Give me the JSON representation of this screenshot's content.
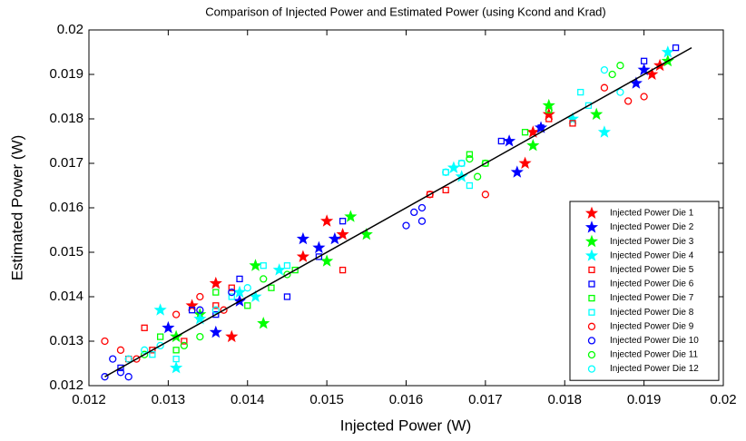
{
  "chart_data": {
    "type": "scatter",
    "title": "Comparison of Injected Power and Estimated Power (using Kcond and Krad)",
    "xlabel": "Injected Power (W)",
    "ylabel": "Estimated Power (W)",
    "xlim": [
      0.012,
      0.02
    ],
    "ylim": [
      0.012,
      0.02
    ],
    "xticks": [
      0.012,
      0.013,
      0.014,
      0.015,
      0.016,
      0.017,
      0.018,
      0.019,
      0.02
    ],
    "yticks": [
      0.012,
      0.013,
      0.014,
      0.015,
      0.016,
      0.017,
      0.018,
      0.019,
      0.02
    ],
    "grid": false,
    "legend": "lower right",
    "fit_line": {
      "x": [
        0.0122,
        0.0196
      ],
      "y": [
        0.0122,
        0.0196
      ],
      "color": "#000000"
    },
    "series": [
      {
        "name": "Injected Power Die 1",
        "color": "#ff0000",
        "marker": "star",
        "x": [
          0.0133,
          0.0136,
          0.0138,
          0.0147,
          0.015,
          0.0152,
          0.0175,
          0.0176,
          0.0178,
          0.0191,
          0.0192
        ],
        "values": [
          0.0138,
          0.0143,
          0.0131,
          0.0149,
          0.0157,
          0.0154,
          0.017,
          0.0177,
          0.0181,
          0.019,
          0.0192
        ]
      },
      {
        "name": "Injected Power Die 2",
        "color": "#0000ff",
        "marker": "star",
        "x": [
          0.013,
          0.0136,
          0.0139,
          0.0147,
          0.0149,
          0.0151,
          0.0173,
          0.0174,
          0.0177,
          0.0189,
          0.019
        ],
        "values": [
          0.0133,
          0.0132,
          0.0139,
          0.0153,
          0.0151,
          0.0153,
          0.0175,
          0.0168,
          0.0178,
          0.0188,
          0.0191
        ]
      },
      {
        "name": "Injected Power Die 3",
        "color": "#00ff00",
        "marker": "star",
        "x": [
          0.0131,
          0.0134,
          0.0141,
          0.0142,
          0.015,
          0.0153,
          0.0155,
          0.0176,
          0.0178,
          0.0184,
          0.0193
        ],
        "values": [
          0.0131,
          0.0136,
          0.0147,
          0.0134,
          0.0148,
          0.0158,
          0.0154,
          0.0174,
          0.0183,
          0.0181,
          0.0193
        ]
      },
      {
        "name": "Injected Power Die 4",
        "color": "#00ffff",
        "marker": "star",
        "x": [
          0.0129,
          0.0131,
          0.0134,
          0.0139,
          0.0141,
          0.0144,
          0.0166,
          0.0167,
          0.0181,
          0.0185,
          0.0193
        ],
        "values": [
          0.0137,
          0.0124,
          0.0135,
          0.0141,
          0.014,
          0.0146,
          0.0169,
          0.0167,
          0.018,
          0.0177,
          0.0195
        ]
      },
      {
        "name": "Injected Power Die 5",
        "color": "#ff0000",
        "marker": "square",
        "x": [
          0.0125,
          0.0127,
          0.0128,
          0.0132,
          0.0136,
          0.0138,
          0.0152,
          0.0163,
          0.0165,
          0.0178,
          0.0181
        ],
        "values": [
          0.0126,
          0.0133,
          0.0128,
          0.013,
          0.0138,
          0.0142,
          0.0146,
          0.0163,
          0.0164,
          0.018,
          0.0179
        ]
      },
      {
        "name": "Injected Power Die 6",
        "color": "#0000ff",
        "marker": "square",
        "x": [
          0.0124,
          0.0133,
          0.0136,
          0.0139,
          0.0145,
          0.0149,
          0.0152,
          0.0172,
          0.0177,
          0.019,
          0.0194
        ],
        "values": [
          0.0124,
          0.0137,
          0.0136,
          0.0144,
          0.014,
          0.0149,
          0.0157,
          0.0175,
          0.0178,
          0.0193,
          0.0196
        ]
      },
      {
        "name": "Injected Power Die 7",
        "color": "#00ff00",
        "marker": "square",
        "x": [
          0.0129,
          0.0131,
          0.0136,
          0.014,
          0.0143,
          0.0146,
          0.0168,
          0.017,
          0.0175,
          0.0178
        ],
        "values": [
          0.0131,
          0.0128,
          0.0141,
          0.0138,
          0.0142,
          0.0146,
          0.0172,
          0.017,
          0.0177,
          0.0182
        ]
      },
      {
        "name": "Injected Power Die 8",
        "color": "#00ffff",
        "marker": "square",
        "x": [
          0.0128,
          0.0131,
          0.0138,
          0.0142,
          0.0145,
          0.0165,
          0.0167,
          0.0168,
          0.0182,
          0.0183
        ],
        "values": [
          0.0127,
          0.0126,
          0.014,
          0.0147,
          0.0147,
          0.0168,
          0.017,
          0.0165,
          0.0186,
          0.0183
        ]
      },
      {
        "name": "Injected Power Die 9",
        "color": "#ff0000",
        "marker": "circle",
        "x": [
          0.0122,
          0.0124,
          0.0126,
          0.0131,
          0.0134,
          0.0137,
          0.0163,
          0.017,
          0.0185,
          0.0188,
          0.019
        ],
        "values": [
          0.013,
          0.0128,
          0.0126,
          0.0136,
          0.014,
          0.0137,
          0.0163,
          0.0163,
          0.0187,
          0.0184,
          0.0185
        ]
      },
      {
        "name": "Injected Power Die 10",
        "color": "#0000ff",
        "marker": "circle",
        "x": [
          0.0122,
          0.0123,
          0.0124,
          0.0125,
          0.0134,
          0.0138,
          0.0161,
          0.0162,
          0.0162,
          0.016
        ],
        "values": [
          0.0122,
          0.0126,
          0.0123,
          0.0122,
          0.0137,
          0.0141,
          0.0159,
          0.0157,
          0.016,
          0.0156
        ]
      },
      {
        "name": "Injected Power Die 11",
        "color": "#00ff00",
        "marker": "circle",
        "x": [
          0.0127,
          0.0132,
          0.0134,
          0.0142,
          0.0145,
          0.0168,
          0.0169,
          0.017,
          0.0186,
          0.0187
        ],
        "values": [
          0.0127,
          0.0129,
          0.0131,
          0.0144,
          0.0145,
          0.0171,
          0.0167,
          0.017,
          0.019,
          0.0192
        ]
      },
      {
        "name": "Injected Power Die 12",
        "color": "#00ffff",
        "marker": "circle",
        "x": [
          0.0125,
          0.0127,
          0.0129,
          0.0136,
          0.014,
          0.0165,
          0.0167,
          0.0185,
          0.0187
        ],
        "values": [
          0.0126,
          0.0128,
          0.0129,
          0.0137,
          0.0142,
          0.0168,
          0.017,
          0.0191,
          0.0186
        ]
      }
    ]
  }
}
